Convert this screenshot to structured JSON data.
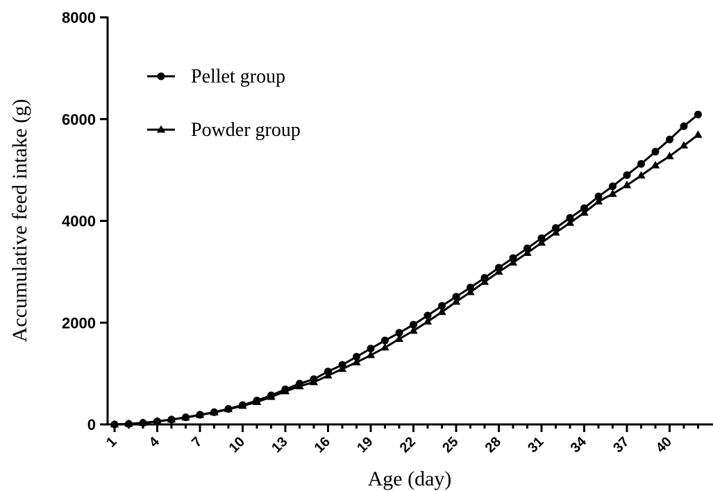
{
  "chart_data": {
    "type": "line",
    "xlabel": "Age (day)",
    "ylabel": "Accumulative feed intake (g)",
    "xlim": [
      1,
      42
    ],
    "ylim": [
      0,
      8000
    ],
    "yticks": [
      0,
      2000,
      4000,
      6000,
      8000
    ],
    "xticks": [
      1,
      4,
      7,
      10,
      13,
      16,
      19,
      22,
      25,
      28,
      31,
      34,
      37,
      40
    ],
    "legend_position": "top-left",
    "grid": false,
    "x": [
      1,
      2,
      3,
      4,
      5,
      6,
      7,
      8,
      9,
      10,
      11,
      12,
      13,
      14,
      15,
      16,
      17,
      18,
      19,
      20,
      21,
      22,
      23,
      24,
      25,
      26,
      27,
      28,
      29,
      30,
      31,
      32,
      33,
      34,
      35,
      36,
      37,
      38,
      39,
      40,
      41,
      42
    ],
    "series": [
      {
        "name": "Pellet group",
        "marker": "circle",
        "values": [
          0,
          10,
          30,
          60,
          95,
          140,
          190,
          240,
          305,
          380,
          470,
          570,
          690,
          800,
          890,
          1040,
          1170,
          1330,
          1490,
          1650,
          1800,
          1960,
          2140,
          2330,
          2510,
          2690,
          2880,
          3080,
          3270,
          3460,
          3660,
          3860,
          4060,
          4250,
          4480,
          4680,
          4900,
          5120,
          5360,
          5600,
          5860,
          6090
        ]
      },
      {
        "name": "Powder group",
        "marker": "triangle",
        "values": [
          0,
          10,
          30,
          60,
          95,
          135,
          185,
          235,
          300,
          365,
          440,
          540,
          650,
          750,
          830,
          960,
          1090,
          1220,
          1360,
          1510,
          1680,
          1840,
          2020,
          2210,
          2410,
          2600,
          2800,
          3000,
          3180,
          3370,
          3570,
          3770,
          3960,
          4160,
          4380,
          4530,
          4700,
          4890,
          5090,
          5270,
          5480,
          5690
        ]
      }
    ]
  }
}
